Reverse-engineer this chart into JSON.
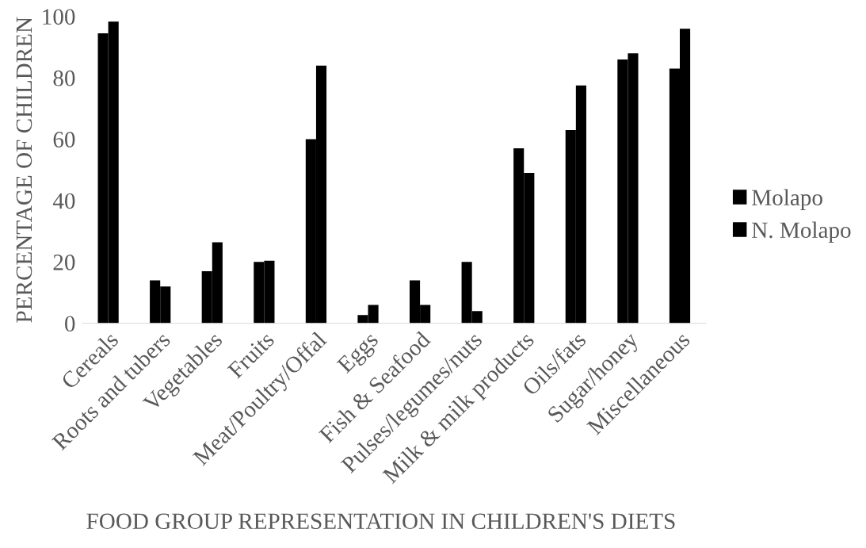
{
  "chart_data": {
    "type": "bar",
    "xlabel": "FOOD GROUP REPRESENTATION IN CHILDREN'S DIETS",
    "ylabel": "PERCENTAGE OF CHILDREN",
    "categories": [
      "Cereals",
      "Roots and tubers",
      "Vegetables",
      "Fruits",
      "Meat/Poultry/Offal",
      "Eggs",
      "Fish & Seafood",
      "Pulses/legumes/nuts",
      "Milk & milk products",
      "Oils/fats",
      "Sugar/honey",
      "Miscellaneous"
    ],
    "series": [
      {
        "name": "Molapo",
        "color": "#000000",
        "values": [
          94.5,
          14,
          17,
          20,
          60,
          2.7,
          14,
          20,
          57,
          63,
          86,
          83
        ]
      },
      {
        "name": "N. Molapo",
        "color": "#000000",
        "values": [
          98.3,
          12,
          26.4,
          20.4,
          84,
          6,
          6,
          4,
          49,
          77.5,
          88,
          96
        ]
      }
    ],
    "ylim": [
      0,
      100
    ],
    "yticks": [
      0,
      20,
      40,
      60,
      80,
      100
    ],
    "grid": false,
    "legend": "right"
  }
}
